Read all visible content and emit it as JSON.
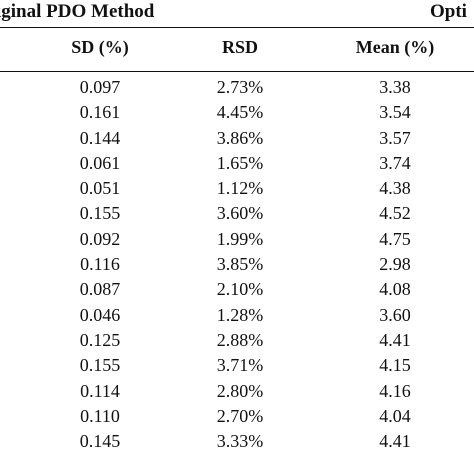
{
  "header": {
    "left_title": "iginal PDO Method",
    "right_title": "Opti"
  },
  "columns": [
    "SD (%)",
    "RSD",
    "Mean (%)"
  ],
  "rows": [
    [
      "0.097",
      "2.73%",
      "3.38"
    ],
    [
      "0.161",
      "4.45%",
      "3.54"
    ],
    [
      "0.144",
      "3.86%",
      "3.57"
    ],
    [
      "0.061",
      "1.65%",
      "3.74"
    ],
    [
      "0.051",
      "1.12%",
      "4.38"
    ],
    [
      "0.155",
      "3.60%",
      "4.52"
    ],
    [
      "0.092",
      "1.99%",
      "4.75"
    ],
    [
      "0.116",
      "3.85%",
      "2.98"
    ],
    [
      "0.087",
      "2.10%",
      "4.08"
    ],
    [
      "0.046",
      "1.28%",
      "3.60"
    ],
    [
      "0.125",
      "2.88%",
      "4.41"
    ],
    [
      "0.155",
      "3.71%",
      "4.15"
    ],
    [
      "0.114",
      "2.80%",
      "4.16"
    ],
    [
      "0.110",
      "2.70%",
      "4.04"
    ],
    [
      "0.145",
      "3.33%",
      "4.41"
    ]
  ]
}
